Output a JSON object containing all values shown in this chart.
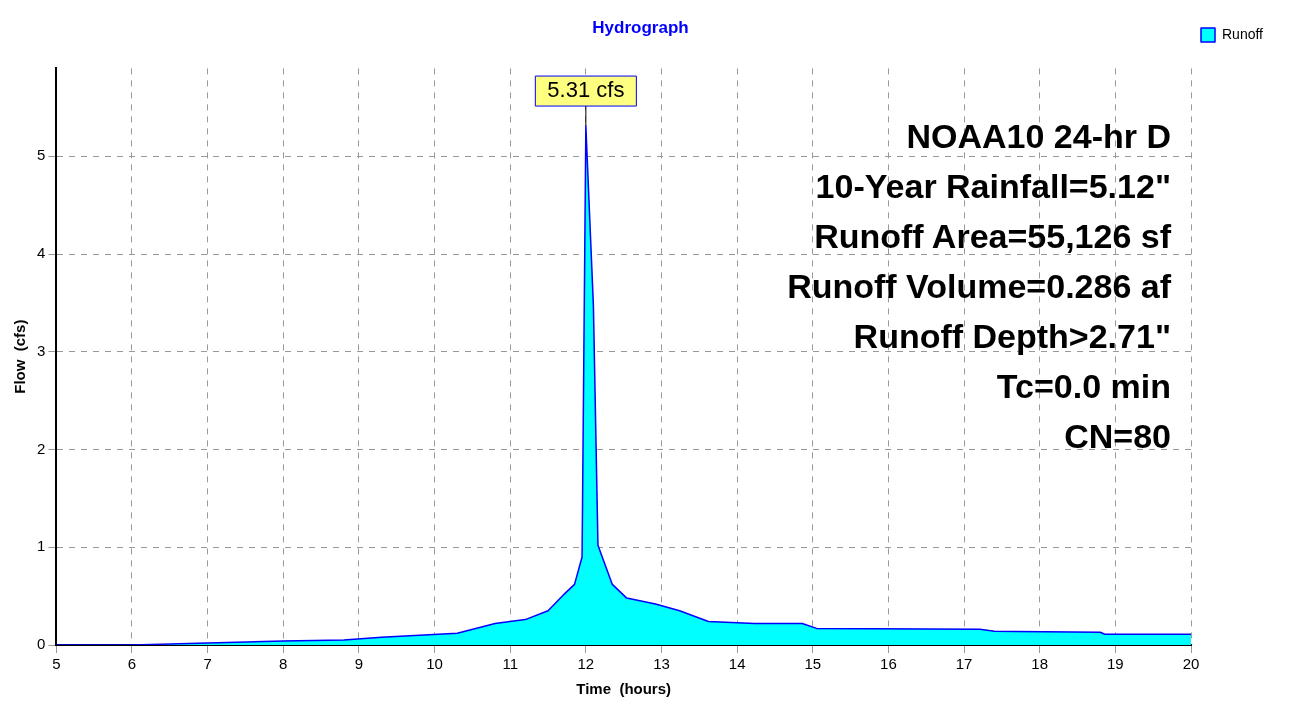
{
  "chart_data": {
    "type": "area",
    "title": "Hydrograph",
    "xlabel": "Time  (hours)",
    "ylabel": "Flow  (cfs)",
    "x": [
      5,
      6,
      7,
      8,
      8.8,
      9.3,
      10.3,
      10.8,
      11.2,
      11.5,
      11.7,
      11.85,
      11.95,
      12.0,
      12.1,
      12.16,
      12.35,
      12.54,
      12.92,
      13.24,
      13.62,
      14.23,
      14.86,
      15.05,
      17.21,
      17.4,
      18.8,
      18.86,
      20
    ],
    "series": [
      {
        "name": "Runoff",
        "color": "#00ffff",
        "values": [
          0,
          0,
          0.02,
          0.04,
          0.05,
          0.08,
          0.12,
          0.22,
          0.26,
          0.35,
          0.51,
          0.62,
          0.9,
          5.31,
          3.47,
          1.02,
          0.62,
          0.48,
          0.42,
          0.35,
          0.24,
          0.22,
          0.22,
          0.17,
          0.16,
          0.14,
          0.13,
          0.11,
          0.11
        ]
      }
    ],
    "xlim": [
      5,
      20
    ],
    "xticks": [
      5,
      6,
      7,
      8,
      9,
      10,
      11,
      12,
      13,
      14,
      15,
      16,
      17,
      18,
      19,
      20
    ],
    "ylim": [
      0,
      5.9
    ],
    "yticks": [
      0,
      1,
      2,
      3,
      4,
      5
    ],
    "grid": true,
    "legend": "top right",
    "marker": "none",
    "line_style": "solid",
    "annotations": [
      "NOAA10 24-hr D",
      "10-Year Rainfall=5.12\"",
      "Runoff Area=55,126 sf",
      "Runoff Volume=0.286 af",
      "Runoff Depth>2.71\"",
      "Tc=0.0 min",
      "CN=80",
      {
        "text": "5.31 cfs",
        "x": 12.0,
        "y": 5.31
      }
    ]
  }
}
